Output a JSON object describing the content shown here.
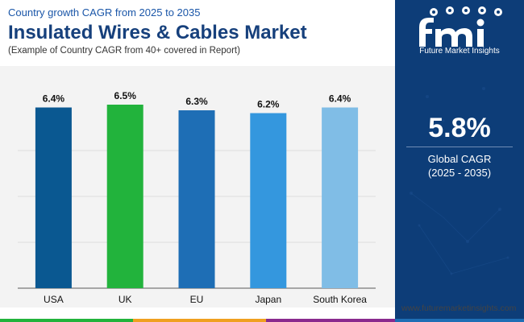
{
  "header": {
    "subtitle": "Country growth CAGR from 2025 to 2035",
    "title": "Insulated Wires & Cables Market",
    "note": "(Example of Country CAGR from 40+ covered in Report)"
  },
  "chart_data": {
    "type": "bar",
    "categories": [
      "USA",
      "UK",
      "EU",
      "Japan",
      "South Korea"
    ],
    "values": [
      6.4,
      6.5,
      6.3,
      6.2,
      6.4
    ],
    "value_labels": [
      "6.4%",
      "6.5%",
      "6.3%",
      "6.2%",
      "6.4%"
    ],
    "colors": [
      "#0a5891",
      "#22b33c",
      "#1e6eb5",
      "#3497de",
      "#80bde6"
    ],
    "ylim": [
      0,
      6.5
    ],
    "gridlines": [
      0,
      1.625,
      3.25,
      4.875
    ],
    "grid": true,
    "legend": "none"
  },
  "sidebar": {
    "brand": "Future Market Insights",
    "global_value": "5.8%",
    "global_label": "Global CAGR",
    "global_period": "(2025 - 2035)",
    "bg_color": "#0d3d78"
  },
  "footer": {
    "url": "www.futuremarketinsights.com",
    "stripe_colors": [
      "#22b33c",
      "#f0a020",
      "#8a2a8e",
      "#1e6eb5"
    ]
  }
}
